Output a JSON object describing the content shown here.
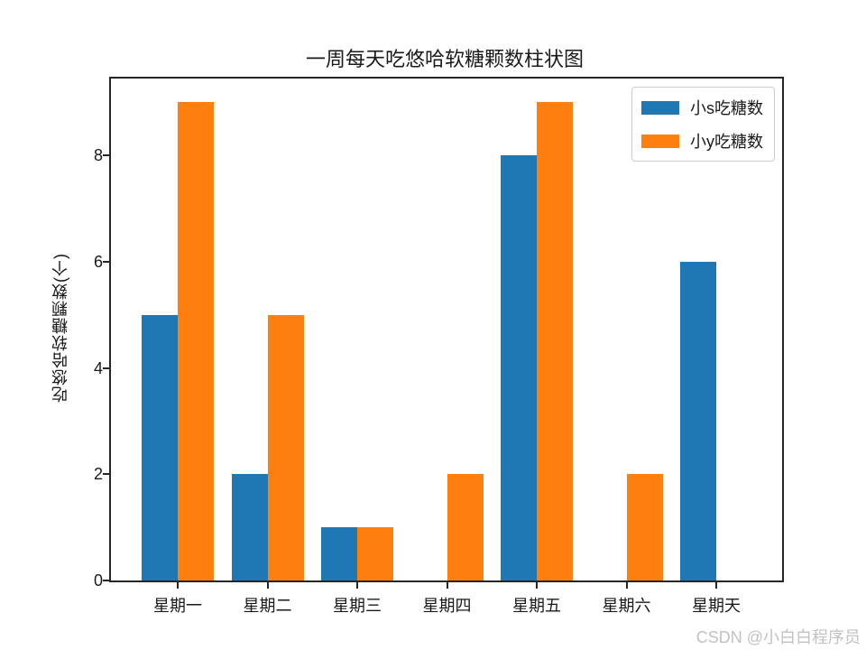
{
  "watermark": "CSDN @小白白程序员",
  "chart_data": {
    "type": "bar",
    "title": "一周每天吃悠哈软糖颗数柱状图",
    "categories": [
      "星期一",
      "星期二",
      "星期三",
      "星期四",
      "星期五",
      "星期六",
      "星期天"
    ],
    "series": [
      {
        "name": "小s吃糖数",
        "color": "#1f77b4",
        "values": [
          5,
          2,
          1,
          0,
          8,
          0,
          6
        ]
      },
      {
        "name": "小y吃糖数",
        "color": "#ff7f0e",
        "values": [
          9,
          5,
          1,
          2,
          9,
          2,
          0
        ]
      }
    ],
    "xlabel": "",
    "ylabel": "吃悠哈软糖颗数(个)",
    "yticks": [
      0,
      2,
      4,
      6,
      8
    ],
    "ylim": [
      0,
      9.45
    ],
    "grid": false,
    "legend_position": "upper right",
    "background": "#ffffff",
    "axis_color": "#262626"
  }
}
